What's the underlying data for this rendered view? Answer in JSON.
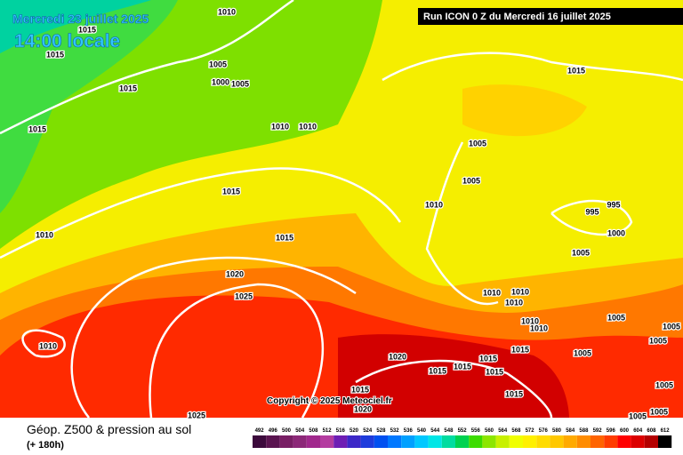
{
  "header": {
    "date": "Mercredi 23 juillet 2025",
    "time": "14:00 locale",
    "run": "Run ICON 0 Z du Mercredi 16 juillet 2025"
  },
  "map": {
    "copyright": "Copyright © 2025 Meteociel.fr",
    "isobar_labels": [
      "1010",
      "1015",
      "1015",
      "1015",
      "1005",
      "1000",
      "1005",
      "1015",
      "1010",
      "1010",
      "1015",
      "1015",
      "1010",
      "1020",
      "1025",
      "1010",
      "1025",
      "1015",
      "1005",
      "1005",
      "1010",
      "995",
      "995",
      "1000",
      "1005",
      "1010",
      "1010",
      "1010",
      "1010",
      "1010",
      "1005",
      "1005",
      "1005",
      "1005",
      "1015",
      "1020",
      "1015",
      "1015",
      "1015",
      "1015",
      "1015",
      "1020",
      "1015",
      "1005",
      "1005",
      "1005"
    ]
  },
  "footer": {
    "title": "Géop. Z500 & pression au sol",
    "lead": "(+ 180h)",
    "scale": [
      {
        "value": 492,
        "color": "#3c0a3c"
      },
      {
        "value": 496,
        "color": "#5a1450"
      },
      {
        "value": 500,
        "color": "#781e64"
      },
      {
        "value": 504,
        "color": "#8c2878"
      },
      {
        "value": 508,
        "color": "#a0288c"
      },
      {
        "value": 512,
        "color": "#b43ca0"
      },
      {
        "value": 516,
        "color": "#6e1eb4"
      },
      {
        "value": 520,
        "color": "#3c28c8"
      },
      {
        "value": 524,
        "color": "#1e3cdc"
      },
      {
        "value": 528,
        "color": "#0050f0"
      },
      {
        "value": 532,
        "color": "#0078ff"
      },
      {
        "value": 536,
        "color": "#00a0ff"
      },
      {
        "value": 540,
        "color": "#00c8ff"
      },
      {
        "value": 544,
        "color": "#00e6e6"
      },
      {
        "value": 548,
        "color": "#00dca0"
      },
      {
        "value": 552,
        "color": "#00d250"
      },
      {
        "value": 556,
        "color": "#3cdc00"
      },
      {
        "value": 560,
        "color": "#8ce600"
      },
      {
        "value": 564,
        "color": "#c8f000"
      },
      {
        "value": 568,
        "color": "#f0ff00"
      },
      {
        "value": 572,
        "color": "#fff000"
      },
      {
        "value": 576,
        "color": "#ffdc00"
      },
      {
        "value": 580,
        "color": "#ffc800"
      },
      {
        "value": 584,
        "color": "#ffaa00"
      },
      {
        "value": 588,
        "color": "#ff8c00"
      },
      {
        "value": 592,
        "color": "#ff6400"
      },
      {
        "value": 596,
        "color": "#ff3c00"
      },
      {
        "value": 600,
        "color": "#ff0000"
      },
      {
        "value": 604,
        "color": "#dc0000"
      },
      {
        "value": 608,
        "color": "#b40000"
      },
      {
        "value": 612,
        "color": "#000000"
      }
    ]
  }
}
